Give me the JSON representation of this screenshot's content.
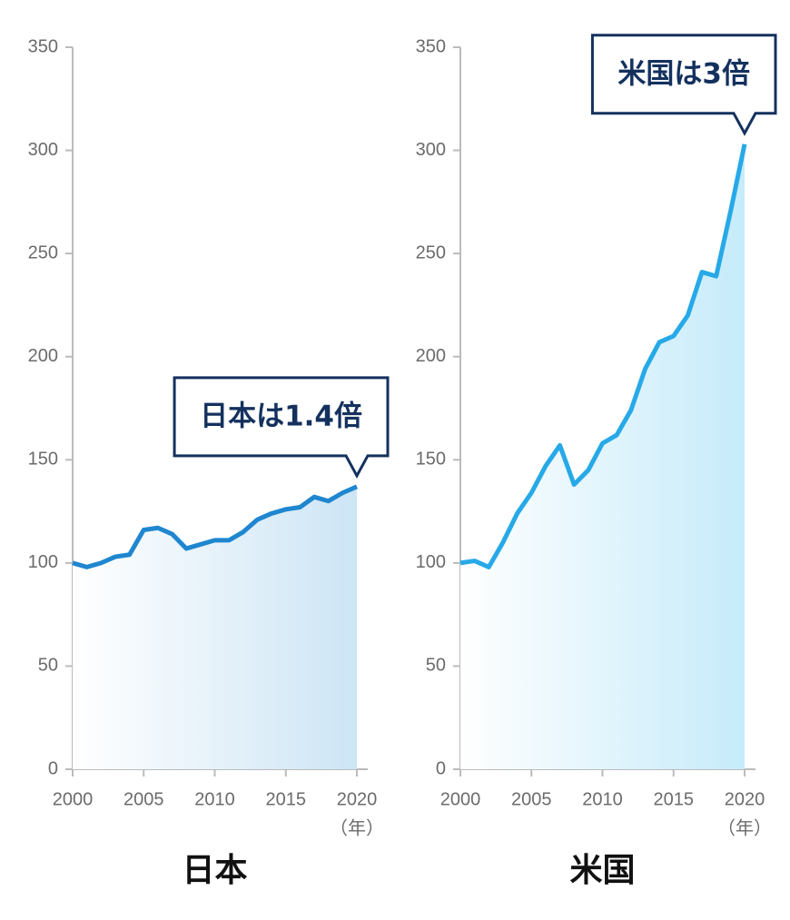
{
  "chart_data": [
    {
      "type": "line",
      "title": "日本",
      "annotation": "日本は1.4倍",
      "xlabel": "（年）",
      "x": [
        2000,
        2001,
        2002,
        2003,
        2004,
        2005,
        2006,
        2007,
        2008,
        2009,
        2010,
        2011,
        2012,
        2013,
        2014,
        2015,
        2016,
        2017,
        2018,
        2019,
        2020
      ],
      "values": [
        100,
        98,
        100,
        103,
        104,
        116,
        117,
        114,
        107,
        109,
        111,
        111,
        115,
        121,
        124,
        126,
        127,
        132,
        130,
        134,
        137
      ],
      "color": "#1f86d0",
      "fill_color": "#cde5f5",
      "area": true,
      "xlim": [
        2000,
        2020
      ],
      "xticks": [
        2000,
        2005,
        2010,
        2015,
        2020
      ],
      "ylim": [
        0,
        350
      ],
      "yticks": [
        0,
        50,
        100,
        150,
        200,
        250,
        300,
        350
      ],
      "grid": false
    },
    {
      "type": "line",
      "title": "米国",
      "annotation": "米国は3倍",
      "xlabel": "（年）",
      "x": [
        2000,
        2001,
        2002,
        2003,
        2004,
        2005,
        2006,
        2007,
        2008,
        2009,
        2010,
        2011,
        2012,
        2013,
        2014,
        2015,
        2016,
        2017,
        2018,
        2019,
        2020
      ],
      "values": [
        100,
        101,
        98,
        110,
        124,
        134,
        147,
        157,
        138,
        145,
        158,
        162,
        174,
        194,
        207,
        210,
        220,
        241,
        239,
        270,
        303
      ],
      "color": "#27a9e8",
      "fill_color": "#c6ebfa",
      "area": true,
      "xlim": [
        2000,
        2020
      ],
      "xticks": [
        2000,
        2005,
        2010,
        2015,
        2020
      ],
      "ylim": [
        0,
        350
      ],
      "yticks": [
        0,
        50,
        100,
        150,
        200,
        250,
        300,
        350
      ],
      "grid": false
    }
  ]
}
